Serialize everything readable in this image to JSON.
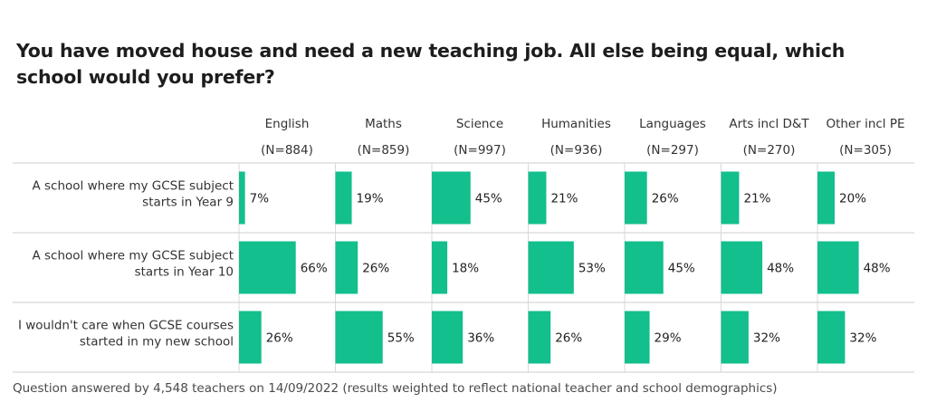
{
  "chart_data": {
    "type": "bar",
    "orientation": "horizontal-small-multiples",
    "title": "You have moved house and need a new teaching job. All else being equal, which school would you prefer?",
    "panels": [
      {
        "name": "English",
        "n": "(N=884)"
      },
      {
        "name": "Maths",
        "n": "(N=859)"
      },
      {
        "name": "Science",
        "n": "(N=997)"
      },
      {
        "name": "Humanities",
        "n": "(N=936)"
      },
      {
        "name": "Languages",
        "n": "(N=297)"
      },
      {
        "name": "Arts incl D&T",
        "n": "(N=270)"
      },
      {
        "name": "Other incl PE",
        "n": "(N=305)"
      }
    ],
    "categories": [
      [
        "A school where my GCSE subject",
        "starts in Year 9"
      ],
      [
        "A school where my GCSE subject",
        "starts in Year 10"
      ],
      [
        "I wouldn't care when GCSE courses",
        "started in my new school"
      ]
    ],
    "values": [
      [
        7,
        66,
        26
      ],
      [
        19,
        26,
        55
      ],
      [
        45,
        18,
        36
      ],
      [
        21,
        53,
        26
      ],
      [
        26,
        45,
        29
      ],
      [
        21,
        48,
        32
      ],
      [
        20,
        48,
        32
      ]
    ],
    "unit": "%",
    "xlim": [
      0,
      100
    ],
    "bar_color": "#13bf8c",
    "footer": "Question answered by 4,548 teachers on 14/09/2022 (results weighted to reflect national teacher and school demographics)"
  }
}
